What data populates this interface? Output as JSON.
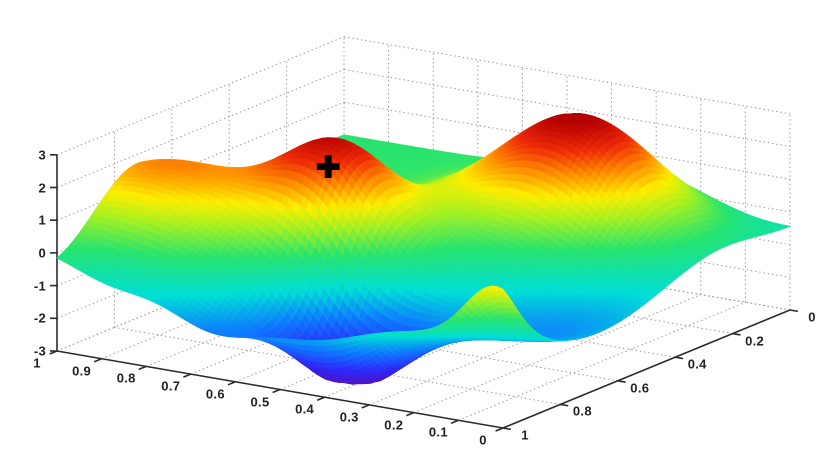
{
  "figure": {
    "background": "#ffffff"
  },
  "colors": {
    "axis": "#2b2b2b",
    "grid": "#9b9b9b",
    "tick_label": "#222222",
    "marker": "#000000"
  },
  "chart_data": {
    "type": "3d-surface",
    "colormap": "jet",
    "grid": true,
    "shading": "interp",
    "axes": {
      "x": {
        "ticks": [
          "1",
          "0.9",
          "0.8",
          "0.7",
          "0.6",
          "0.5",
          "0.4",
          "0.3",
          "0.2",
          "0.1",
          "0"
        ],
        "range": [
          0,
          1
        ]
      },
      "y": {
        "ticks": [
          "1",
          "0.8",
          "0.6",
          "0.4",
          "0.2",
          "0"
        ],
        "range": [
          0,
          1
        ]
      },
      "z": {
        "ticks": [
          "3",
          "2",
          "1",
          "0",
          "-1",
          "-2",
          "-3"
        ],
        "range": [
          -3,
          3
        ]
      }
    },
    "marker": {
      "symbol": "✚",
      "x": 0.63,
      "y": 0.63,
      "z": 2.1
    },
    "surface_model": {
      "kind": "gaussian-mixture-approximation",
      "baseline": 0,
      "grid_resolution": 84,
      "components": [
        {
          "a": 2.7,
          "x": 0.63,
          "y": 0.6,
          "sx": 0.105,
          "sy": 0.11
        },
        {
          "a": 3.6,
          "x": 0.3,
          "y": 0.25,
          "sx": 0.16,
          "sy": 0.15
        },
        {
          "a": -3.0,
          "x": 0.44,
          "y": 0.86,
          "sx": 0.12,
          "sy": 0.1
        },
        {
          "a": 1.9,
          "x": 0.93,
          "y": 0.72,
          "sx": 0.16,
          "sy": 0.13
        },
        {
          "a": -1.5,
          "x": 0.66,
          "y": 1.04,
          "sx": 0.1,
          "sy": 0.11
        },
        {
          "a": 2.0,
          "x": 0.02,
          "y": 1.05,
          "sx": 0.065,
          "sy": 0.085
        },
        {
          "a": -1.0,
          "x": 0.1,
          "y": 0.3,
          "sx": 0.18,
          "sy": 0.35
        },
        {
          "a": -0.8,
          "x": 0.88,
          "y": 1.02,
          "sx": 0.09,
          "sy": 0.09
        },
        {
          "a": -1.0,
          "x": 0.12,
          "y": 0.72,
          "sx": 0.2,
          "sy": 0.18
        }
      ]
    },
    "colormap_stops": [
      [
        0.0,
        82,
        18,
        192
      ],
      [
        0.1,
        45,
        40,
        250
      ],
      [
        0.22,
        15,
        120,
        255
      ],
      [
        0.35,
        0,
        222,
        215
      ],
      [
        0.5,
        40,
        228,
        110
      ],
      [
        0.62,
        165,
        240,
        35
      ],
      [
        0.71,
        252,
        238,
        0
      ],
      [
        0.8,
        255,
        148,
        0
      ],
      [
        0.9,
        238,
        42,
        8
      ],
      [
        1.0,
        180,
        0,
        0
      ]
    ],
    "view": {
      "origin_front": [
        503,
        428
      ],
      "vec_x": [
        -446,
        -77
      ],
      "vec_yback": [
        287,
        -118
      ],
      "vec_z": [
        0,
        -32.7
      ]
    }
  }
}
